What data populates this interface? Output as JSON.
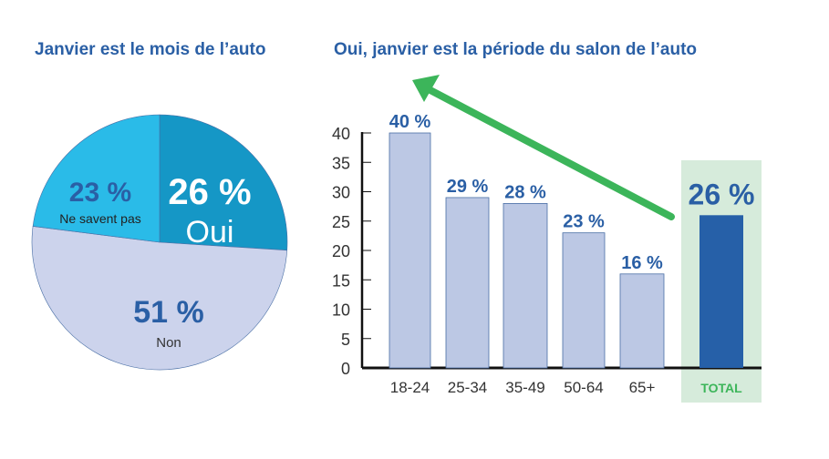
{
  "chart_data": [
    {
      "type": "pie",
      "title": "Janvier est le mois de l’auto",
      "slices": [
        {
          "label": "Oui",
          "value": 26,
          "value_label": "26 %",
          "color": "#1597c6"
        },
        {
          "label": "Non",
          "value": 51,
          "value_label": "51 %",
          "color": "#ccd3ec"
        },
        {
          "label": "Ne savent pas",
          "value": 23,
          "value_label": "23 %",
          "color": "#2abbe8"
        }
      ]
    },
    {
      "type": "bar",
      "title": "Oui, janvier est la période du salon de l’auto",
      "categories": [
        "18-24",
        "25-34",
        "35-49",
        "50-64",
        "65+",
        "TOTAL"
      ],
      "values": [
        40,
        29,
        28,
        23,
        16,
        26
      ],
      "data_labels": [
        "40 %",
        "29 %",
        "28 %",
        "23 %",
        "16 %",
        "26 %"
      ],
      "ylim": [
        0,
        40
      ],
      "yticks": [
        0,
        5,
        10,
        15,
        20,
        25,
        30,
        35,
        40
      ],
      "grid": false,
      "colors": {
        "bars": "#bcc8e4",
        "total_bar": "#2660a8",
        "total_highlight": "#d6ebdb",
        "total_label": "#3cb55a",
        "arrow": "#3cb55a",
        "labels": "#2a5fa5"
      }
    }
  ]
}
